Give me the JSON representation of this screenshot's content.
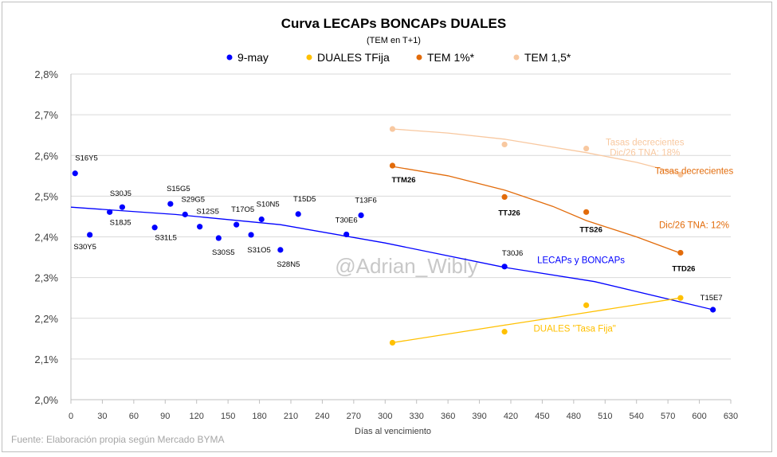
{
  "chart_data": {
    "type": "scatter",
    "title": "Curva LECAPs BONCAPs DUALES",
    "subtitle": "(TEM en T+1)",
    "xlabel": "Días al vencimiento",
    "ylabel": "",
    "xlim": [
      0,
      630
    ],
    "ylim": [
      2.0,
      2.8
    ],
    "x_ticks": [
      "0",
      "30",
      "60",
      "90",
      "120",
      "150",
      "180",
      "210",
      "240",
      "270",
      "300",
      "330",
      "360",
      "390",
      "420",
      "450",
      "480",
      "510",
      "540",
      "570",
      "600",
      "630"
    ],
    "y_ticks": [
      "2,0%",
      "2,1%",
      "2,2%",
      "2,3%",
      "2,4%",
      "2,5%",
      "2,6%",
      "2,7%",
      "2,8%"
    ],
    "grid": "horizontal",
    "legend_position": "top",
    "series": [
      {
        "name": "9-may",
        "color": "#0000ff",
        "points": [
          {
            "label": "S16Y5",
            "x": 4,
            "y": 2.556
          },
          {
            "label": "S30Y5",
            "x": 18,
            "y": 2.405
          },
          {
            "label": "S18J5",
            "x": 37,
            "y": 2.461
          },
          {
            "label": "S30J5",
            "x": 49,
            "y": 2.473
          },
          {
            "label": "S31L5",
            "x": 80,
            "y": 2.423
          },
          {
            "label": "S15G5",
            "x": 95,
            "y": 2.481
          },
          {
            "label": "S29G5",
            "x": 109,
            "y": 2.455
          },
          {
            "label": "S12S5",
            "x": 123,
            "y": 2.425
          },
          {
            "label": "S30S5",
            "x": 141,
            "y": 2.397
          },
          {
            "label": "T17O5",
            "x": 158,
            "y": 2.43
          },
          {
            "label": "S31O5",
            "x": 172,
            "y": 2.405
          },
          {
            "label": "S10N5",
            "x": 182,
            "y": 2.443
          },
          {
            "label": "S28N5",
            "x": 200,
            "y": 2.368
          },
          {
            "label": "T15D5",
            "x": 217,
            "y": 2.456
          },
          {
            "label": "T30E6",
            "x": 263,
            "y": 2.406
          },
          {
            "label": "T13F6",
            "x": 277,
            "y": 2.453
          },
          {
            "label": "T30J6",
            "x": 414,
            "y": 2.327
          },
          {
            "label": "T15E7",
            "x": 613,
            "y": 2.221
          }
        ]
      },
      {
        "name": "DUALES TFija",
        "color": "#ffc000",
        "points": [
          {
            "label": "",
            "x": 307,
            "y": 2.14
          },
          {
            "label": "",
            "x": 414,
            "y": 2.167
          },
          {
            "label": "",
            "x": 492,
            "y": 2.232
          },
          {
            "label": "",
            "x": 582,
            "y": 2.25
          }
        ]
      },
      {
        "name": "TEM 1%*",
        "color": "#e26b0a",
        "points": [
          {
            "label": "TTM26",
            "x": 307,
            "y": 2.575
          },
          {
            "label": "TTJ26",
            "x": 414,
            "y": 2.498
          },
          {
            "label": "TTS26",
            "x": 492,
            "y": 2.461
          },
          {
            "label": "TTD26",
            "x": 582,
            "y": 2.361
          }
        ]
      },
      {
        "name": "TEM 1,5*",
        "color": "#f8c8a0",
        "points": [
          {
            "label": "",
            "x": 307,
            "y": 2.665
          },
          {
            "label": "",
            "x": 414,
            "y": 2.627
          },
          {
            "label": "",
            "x": 492,
            "y": 2.617
          },
          {
            "label": "",
            "x": 582,
            "y": 2.553
          }
        ]
      }
    ],
    "trendlines": [
      {
        "series": "9-may",
        "color": "#0000ff",
        "x_range": [
          0,
          613
        ],
        "points": [
          [
            0,
            2.473
          ],
          [
            100,
            2.455
          ],
          [
            200,
            2.43
          ],
          [
            300,
            2.385
          ],
          [
            414,
            2.325
          ],
          [
            500,
            2.29
          ],
          [
            613,
            2.221
          ]
        ]
      },
      {
        "series": "DUALES TFija",
        "color": "#ffc000",
        "x_range": [
          307,
          582
        ],
        "points": [
          [
            307,
            2.14
          ],
          [
            414,
            2.183
          ],
          [
            492,
            2.214
          ],
          [
            582,
            2.25
          ]
        ]
      },
      {
        "series": "TEM 1%*",
        "color": "#e26b0a",
        "x_range": [
          307,
          582
        ],
        "points": [
          [
            307,
            2.573
          ],
          [
            360,
            2.55
          ],
          [
            414,
            2.515
          ],
          [
            460,
            2.475
          ],
          [
            492,
            2.44
          ],
          [
            540,
            2.4
          ],
          [
            582,
            2.36
          ]
        ]
      },
      {
        "series": "TEM 1,5*",
        "color": "#f8c8a0",
        "x_range": [
          307,
          582
        ],
        "points": [
          [
            307,
            2.665
          ],
          [
            360,
            2.655
          ],
          [
            414,
            2.64
          ],
          [
            492,
            2.607
          ],
          [
            540,
            2.583
          ],
          [
            582,
            2.555
          ]
        ]
      }
    ],
    "annotations": [
      {
        "text": "Tasas decrecientes",
        "color": "#f8c8a0",
        "x": 548,
        "y": 2.625
      },
      {
        "text": "Dic/26 TNA: 18%",
        "color": "#f8c8a0",
        "x": 548,
        "y": 2.6
      },
      {
        "text": "Tasas decrecientes",
        "color": "#e26b0a",
        "x": 595,
        "y": 2.555
      },
      {
        "text": "Dic/26 TNA: 12%",
        "color": "#e26b0a",
        "x": 595,
        "y": 2.422
      },
      {
        "text": "LECAPs y BONCAPs",
        "color": "#0000ff",
        "x": 487,
        "y": 2.335
      },
      {
        "text": "DUALES \"Tasa Fija\"",
        "color": "#ffc000",
        "x": 481,
        "y": 2.167
      }
    ],
    "watermark": "@Adrian_Wibly",
    "source": "Fuente: Elaboración propia según Mercado BYMA"
  }
}
